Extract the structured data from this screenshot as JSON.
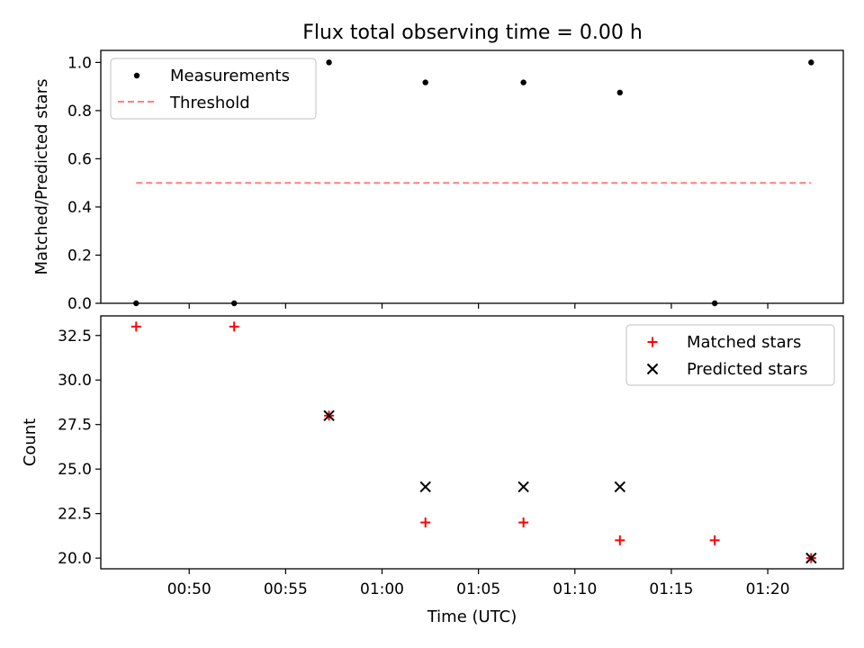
{
  "figure": {
    "title": "Flux total observing time = 0.00 h"
  },
  "chart_data": [
    {
      "type": "scatter",
      "ylabel": "Matched/Predicted stars",
      "ylim": [
        0.0,
        1.05
      ],
      "xlim": [
        "00:45:25",
        "01:23:55"
      ],
      "yticks": [
        0.0,
        0.2,
        0.4,
        0.6,
        0.8,
        1.0
      ],
      "ytick_labels": [
        "0.0",
        "0.2",
        "0.4",
        "0.6",
        "0.8",
        "1.0"
      ],
      "legend_position": "upper-left",
      "series": [
        {
          "name": "Measurements",
          "marker": "dot",
          "color": "#000000",
          "x": [
            "00:47:15",
            "00:52:20",
            "00:57:15",
            "01:02:15",
            "01:07:20",
            "01:12:20",
            "01:17:15",
            "01:22:15"
          ],
          "y": [
            0.0,
            0.0,
            1.0,
            0.917,
            0.917,
            0.875,
            0.0,
            1.0
          ]
        },
        {
          "name": "Threshold",
          "marker": "dashed-line",
          "color": "#ff7f7f",
          "x": [
            "00:47:15",
            "01:22:15"
          ],
          "y": [
            0.5,
            0.5
          ]
        }
      ]
    },
    {
      "type": "scatter",
      "xlabel": "Time (UTC)",
      "ylabel": "Count",
      "ylim": [
        19.4,
        33.6
      ],
      "xlim": [
        "00:45:25",
        "01:23:55"
      ],
      "yticks": [
        20.0,
        22.5,
        25.0,
        27.5,
        30.0,
        32.5
      ],
      "ytick_labels": [
        "20.0",
        "22.5",
        "25.0",
        "27.5",
        "30.0",
        "32.5"
      ],
      "xticks": [
        "00:50",
        "00:55",
        "01:00",
        "01:05",
        "01:10",
        "01:15",
        "01:20"
      ],
      "legend_position": "upper-right",
      "series": [
        {
          "name": "Matched stars",
          "marker": "plus",
          "color": "#ff0000",
          "x": [
            "00:47:15",
            "00:52:20",
            "00:57:15",
            "01:02:15",
            "01:07:20",
            "01:12:20",
            "01:17:15",
            "01:22:15"
          ],
          "y": [
            33,
            33,
            28,
            22,
            22,
            21,
            21,
            20
          ]
        },
        {
          "name": "Predicted stars",
          "marker": "x",
          "color": "#000000",
          "x": [
            "00:57:15",
            "01:02:15",
            "01:07:20",
            "01:12:20",
            "01:22:15"
          ],
          "y": [
            28,
            24,
            24,
            24,
            20
          ]
        }
      ]
    }
  ]
}
